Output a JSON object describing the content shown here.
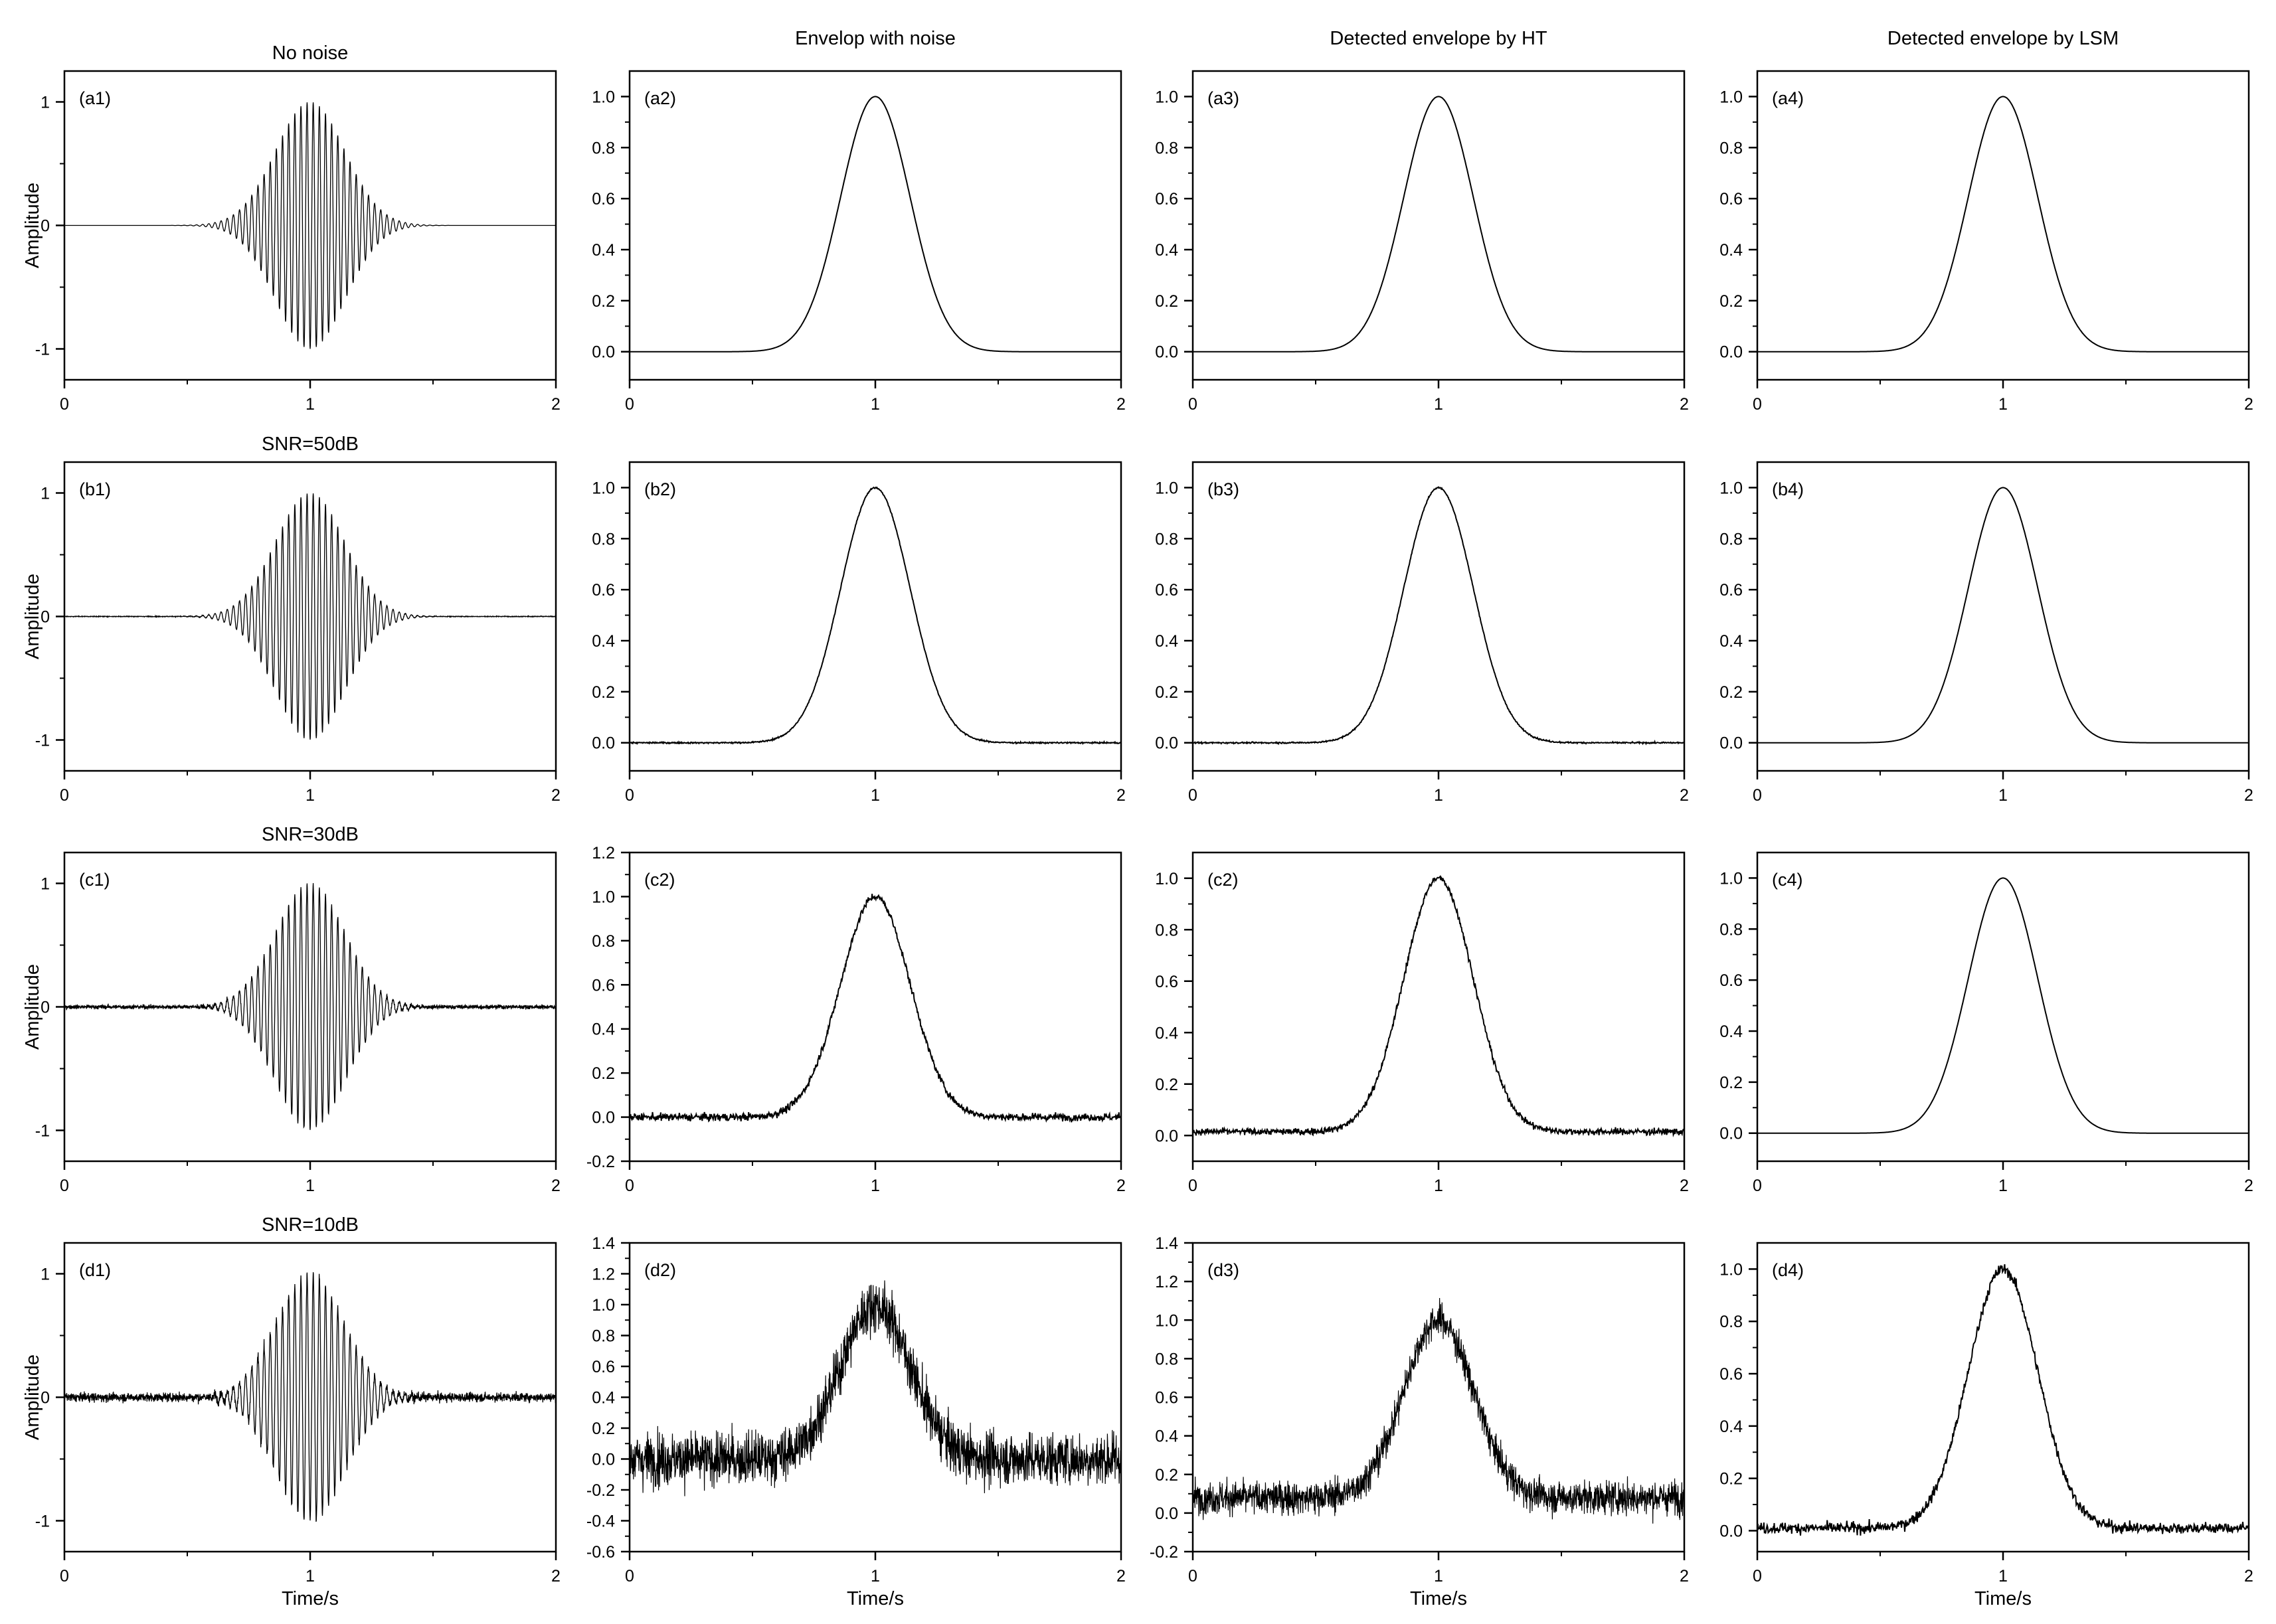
{
  "figure": {
    "column_titles": [
      "No noise",
      "Envelop with noise",
      "Detected envelope by HT",
      "Detected envelope by LSM"
    ],
    "row_titles": [
      "No noise",
      "SNR=50dB",
      "SNR=30dB",
      "SNR=10dB"
    ],
    "ylabel": "Amplitude",
    "xlabel": "Time/s",
    "colors": {
      "line": "#000000",
      "background": "#ffffff"
    }
  },
  "chart_data": [
    {
      "id": "a1",
      "type": "line",
      "kind": "carrier",
      "label": "(a1)",
      "title": "No noise",
      "ylabel": "Amplitude",
      "xlabel": "",
      "xlim": [
        0,
        2
      ],
      "ylim": [
        -1.25,
        1.25
      ],
      "xticks": [
        0,
        1,
        2
      ],
      "yticks": [
        -1,
        0,
        1
      ],
      "center": 1,
      "width": 0.2,
      "amplitude": 1.0,
      "noise": 0.0,
      "grid": false
    },
    {
      "id": "a2",
      "type": "line",
      "kind": "envelope",
      "label": "(a2)",
      "title": "Envelop with noise",
      "ylabel": "",
      "xlabel": "",
      "xlim": [
        0,
        2
      ],
      "ylim": [
        -0.11,
        1.1
      ],
      "xticks": [
        0,
        1,
        2
      ],
      "yticks": [
        0.0,
        0.2,
        0.4,
        0.6,
        0.8,
        1.0
      ],
      "center": 1,
      "width": 0.2,
      "offset": 0,
      "noise": 0.0,
      "grid": false
    },
    {
      "id": "a3",
      "type": "line",
      "kind": "envelope",
      "label": "(a3)",
      "title": "Detected envelope by HT",
      "ylabel": "",
      "xlabel": "",
      "xlim": [
        0,
        2
      ],
      "ylim": [
        -0.11,
        1.1
      ],
      "xticks": [
        0,
        1,
        2
      ],
      "yticks": [
        0.0,
        0.2,
        0.4,
        0.6,
        0.8,
        1.0
      ],
      "center": 1,
      "width": 0.2,
      "offset": 0,
      "noise": 0.0,
      "grid": false
    },
    {
      "id": "a4",
      "type": "line",
      "kind": "envelope",
      "label": "(a4)",
      "title": "Detected envelope by LSM",
      "ylabel": "",
      "xlabel": "",
      "xlim": [
        0,
        2
      ],
      "ylim": [
        -0.11,
        1.1
      ],
      "xticks": [
        0,
        1,
        2
      ],
      "yticks": [
        0.0,
        0.2,
        0.4,
        0.6,
        0.8,
        1.0
      ],
      "center": 1,
      "width": 0.2,
      "offset": 0,
      "noise": 0.0,
      "grid": false
    },
    {
      "id": "b1",
      "type": "line",
      "kind": "carrier",
      "label": "(b1)",
      "title": "SNR=50dB",
      "ylabel": "Amplitude",
      "xlabel": "",
      "xlim": [
        0,
        2
      ],
      "ylim": [
        -1.25,
        1.25
      ],
      "xticks": [
        0,
        1,
        2
      ],
      "yticks": [
        -1,
        0,
        1
      ],
      "center": 1,
      "width": 0.2,
      "amplitude": 1.0,
      "noise": 0.002,
      "grid": false
    },
    {
      "id": "b2",
      "type": "line",
      "kind": "envelope",
      "label": "(b2)",
      "title": "",
      "ylabel": "",
      "xlabel": "",
      "xlim": [
        0,
        2
      ],
      "ylim": [
        -0.11,
        1.1
      ],
      "xticks": [
        0,
        1,
        2
      ],
      "yticks": [
        0.0,
        0.2,
        0.4,
        0.6,
        0.8,
        1.0
      ],
      "center": 1,
      "width": 0.2,
      "offset": 0,
      "noise": 0.002,
      "grid": false
    },
    {
      "id": "b3",
      "type": "line",
      "kind": "envelope",
      "label": "(b3)",
      "title": "",
      "ylabel": "",
      "xlabel": "",
      "xlim": [
        0,
        2
      ],
      "ylim": [
        -0.11,
        1.1
      ],
      "xticks": [
        0,
        1,
        2
      ],
      "yticks": [
        0.0,
        0.2,
        0.4,
        0.6,
        0.8,
        1.0
      ],
      "center": 1,
      "width": 0.2,
      "offset": 0,
      "noise": 0.002,
      "grid": false
    },
    {
      "id": "b4",
      "type": "line",
      "kind": "envelope",
      "label": "(b4)",
      "title": "",
      "ylabel": "",
      "xlabel": "",
      "xlim": [
        0,
        2
      ],
      "ylim": [
        -0.11,
        1.1
      ],
      "xticks": [
        0,
        1,
        2
      ],
      "yticks": [
        0.0,
        0.2,
        0.4,
        0.6,
        0.8,
        1.0
      ],
      "center": 1,
      "width": 0.2,
      "offset": 0,
      "noise": 0.0,
      "grid": false
    },
    {
      "id": "c1",
      "type": "line",
      "kind": "carrier",
      "label": "(c1)",
      "title": "SNR=30dB",
      "ylabel": "Amplitude",
      "xlabel": "",
      "xlim": [
        0,
        2
      ],
      "ylim": [
        -1.25,
        1.25
      ],
      "xticks": [
        0,
        1,
        2
      ],
      "yticks": [
        -1,
        0,
        1
      ],
      "center": 1,
      "width": 0.2,
      "amplitude": 1.0,
      "noise": 0.012,
      "grid": false
    },
    {
      "id": "c2",
      "type": "line",
      "kind": "envelope",
      "label": "(c2)",
      "title": "",
      "ylabel": "",
      "xlabel": "",
      "xlim": [
        0,
        2
      ],
      "ylim": [
        -0.2,
        1.2
      ],
      "xticks": [
        0,
        1,
        2
      ],
      "yticks": [
        -0.2,
        0.0,
        0.2,
        0.4,
        0.6,
        0.8,
        1.0,
        1.2
      ],
      "center": 1,
      "width": 0.2,
      "offset": 0,
      "noise": 0.012,
      "grid": false
    },
    {
      "id": "c3",
      "type": "line",
      "kind": "envelope",
      "label": "(c2)",
      "title": "",
      "ylabel": "",
      "xlabel": "",
      "xlim": [
        0,
        2
      ],
      "ylim": [
        -0.1,
        1.1
      ],
      "xticks": [
        0,
        1,
        2
      ],
      "yticks": [
        0.0,
        0.2,
        0.4,
        0.6,
        0.8,
        1.0
      ],
      "center": 1,
      "width": 0.2,
      "offset": 0.015,
      "noise": 0.009,
      "grid": false
    },
    {
      "id": "c4",
      "type": "line",
      "kind": "envelope",
      "label": "(c4)",
      "title": "",
      "ylabel": "",
      "xlabel": "",
      "xlim": [
        0,
        2
      ],
      "ylim": [
        -0.11,
        1.1
      ],
      "xticks": [
        0,
        1,
        2
      ],
      "yticks": [
        0.0,
        0.2,
        0.4,
        0.6,
        0.8,
        1.0
      ],
      "center": 1,
      "width": 0.2,
      "offset": 0,
      "noise": 0.0,
      "grid": false
    },
    {
      "id": "d1",
      "type": "line",
      "kind": "carrier",
      "label": "(d1)",
      "title": "SNR=10dB",
      "ylabel": "Amplitude",
      "xlabel": "Time/s",
      "xlim": [
        0,
        2
      ],
      "ylim": [
        -1.25,
        1.25
      ],
      "xticks": [
        0,
        1,
        2
      ],
      "yticks": [
        -1,
        0,
        1
      ],
      "center": 1,
      "width": 0.2,
      "amplitude": 1.0,
      "noise": 0.025,
      "grid": false
    },
    {
      "id": "d2",
      "type": "line",
      "kind": "envelope",
      "label": "(d2)",
      "title": "",
      "ylabel": "",
      "xlabel": "Time/s",
      "xlim": [
        0,
        2
      ],
      "ylim": [
        -0.6,
        1.4
      ],
      "xticks": [
        0,
        1,
        2
      ],
      "yticks": [
        -0.6,
        -0.4,
        -0.2,
        0.0,
        0.2,
        0.4,
        0.6,
        0.8,
        1.0,
        1.2,
        1.4
      ],
      "center": 1,
      "width": 0.2,
      "offset": 0,
      "noise": 0.12,
      "grid": false
    },
    {
      "id": "d3",
      "type": "line",
      "kind": "envelope",
      "label": "(d3)",
      "title": "",
      "ylabel": "",
      "xlabel": "Time/s",
      "xlim": [
        0,
        2
      ],
      "ylim": [
        -0.2,
        1.4
      ],
      "xticks": [
        0,
        1,
        2
      ],
      "yticks": [
        -0.2,
        0.0,
        0.2,
        0.4,
        0.6,
        0.8,
        1.0,
        1.2,
        1.4
      ],
      "center": 1,
      "width": 0.2,
      "offset": 0.08,
      "noise": 0.06,
      "grid": false
    },
    {
      "id": "d4",
      "type": "line",
      "kind": "envelope",
      "label": "(d4)",
      "title": "",
      "ylabel": "",
      "xlabel": "Time/s",
      "xlim": [
        0,
        2
      ],
      "ylim": [
        -0.08,
        1.1
      ],
      "xticks": [
        0,
        1,
        2
      ],
      "yticks": [
        0.0,
        0.2,
        0.4,
        0.6,
        0.8,
        1.0
      ],
      "center": 1,
      "width": 0.2,
      "offset": 0.01,
      "noise": 0.015,
      "grid": false
    }
  ]
}
